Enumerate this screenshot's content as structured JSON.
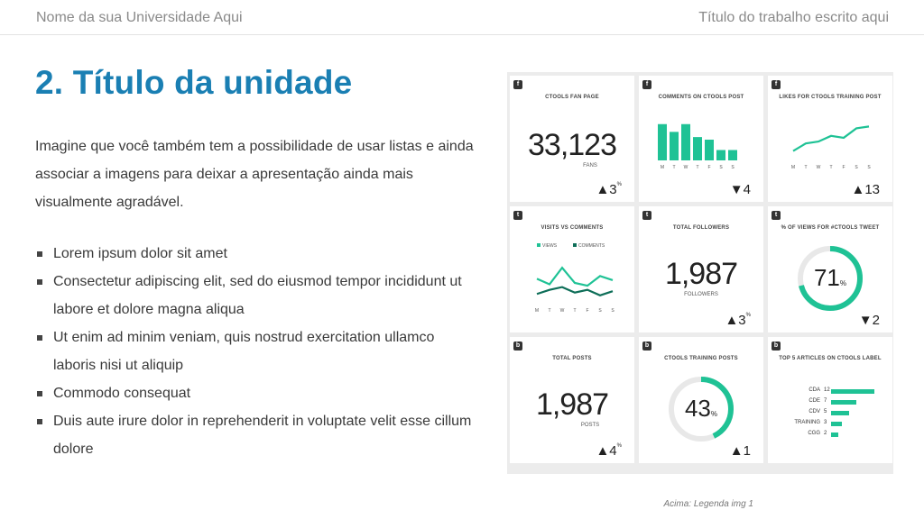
{
  "header": {
    "university": "Nome da sua Universidade Aqui",
    "work_title": "Título do trabalho escrito aqui"
  },
  "slide": {
    "title": "2. Título da unidade",
    "intro": "Imagine que você também tem a possibilidade de usar listas e ainda associar a imagens para deixar a apresentação ainda mais visualmente agradável.",
    "bullets": [
      "Lorem ipsum dolor sit amet",
      "Consectetur adipiscing elit, sed do eiusmod tempor incididunt ut labore et dolore magna aliqua",
      "Ut enim ad minim veniam, quis nostrud exercitation ullamco laboris nisi ut aliquip",
      "Commodo consequat",
      "Duis aute irure dolor in reprehenderit in voluptate velit esse cillum dolore"
    ],
    "caption": "Acima: Legenda img 1"
  },
  "dashboard": {
    "accent": "#1fc295",
    "panels": {
      "fan_page": {
        "title": "CTOOLS FAN PAGE",
        "value": "33,123",
        "sub": "FANS",
        "delta": "▲3",
        "pct": "%"
      },
      "comments": {
        "title": "COMMENTS ON CTOOLS POST",
        "delta": "▼4",
        "days": [
          "M",
          "T",
          "W",
          "T",
          "F",
          "S",
          "S"
        ],
        "values": [
          14,
          11,
          14,
          9,
          8,
          4,
          4
        ]
      },
      "likes": {
        "title": "LIKES FOR CTOOLS TRAINING POST",
        "delta": "▲13",
        "days": [
          "M",
          "T",
          "W",
          "T",
          "F",
          "S",
          "S"
        ],
        "values": [
          5,
          9,
          10,
          13,
          12,
          17,
          18
        ]
      },
      "visits": {
        "title": "VISITS VS COMMENTS",
        "legend_views": "VIEWS",
        "legend_comments": "COMMENTS",
        "days": [
          "M",
          "T",
          "W",
          "T",
          "F",
          "S",
          "S"
        ]
      },
      "followers": {
        "title": "TOTAL FOLLOWERS",
        "value": "1,987",
        "sub": "FOLLOWERS",
        "delta": "▲3",
        "pct": "%"
      },
      "tweet_views": {
        "title": "% OF VIEWS FOR #CTOOLS TWEET",
        "value": "71",
        "pct": "%",
        "fraction": 0.71,
        "delta": "▼2"
      },
      "total_posts": {
        "title": "TOTAL POSTS",
        "value": "1,987",
        "sub": "POSTS",
        "delta": "▲4",
        "pct": "%"
      },
      "training_posts": {
        "title": "CTOOLS TRAINING POSTS",
        "value": "43",
        "pct": "%",
        "fraction": 0.43,
        "delta": "▲1"
      },
      "top_articles": {
        "title": "TOP 5 ARTICLES ON CTOOLS LABEL",
        "rows": [
          {
            "label": "CDA",
            "value": "12"
          },
          {
            "label": "CDE",
            "value": "7"
          },
          {
            "label": "CDV",
            "value": "5"
          },
          {
            "label": "TRAINING",
            "value": "3"
          },
          {
            "label": "CGG",
            "value": "2"
          }
        ]
      }
    }
  }
}
